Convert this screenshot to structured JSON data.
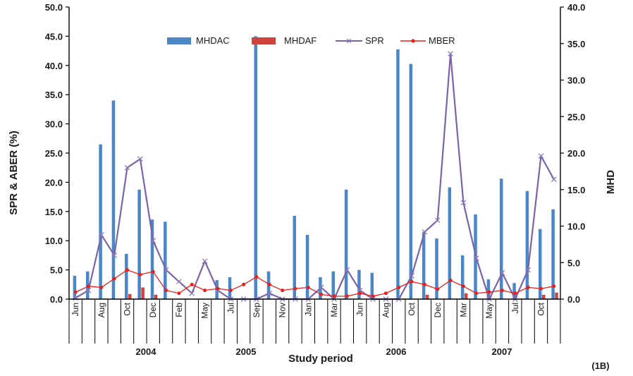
{
  "chart_data": {
    "type": "bar",
    "panel_label": "(1B)",
    "xlabel": "Study period",
    "ylabel_left": "SPR & ABER (%)",
    "ylabel_right": "MHD",
    "ylim_left": [
      0,
      50
    ],
    "ylim_right": [
      0,
      40
    ],
    "yticks_left": [
      "0.0",
      "5.0",
      "10.0",
      "15.0",
      "20.0",
      "25.0",
      "30.0",
      "35.0",
      "40.0",
      "45.0",
      "50.0"
    ],
    "yticks_right": [
      "0.0",
      "5.0",
      "10.0",
      "15.0",
      "20.0",
      "25.0",
      "30.0",
      "35.0",
      "40.0"
    ],
    "month_labels": [
      "Jun",
      "Aug",
      "Oct",
      "Dec",
      "Feb",
      "May",
      "Jul",
      "Sep",
      "Nov",
      "Jan",
      "Mar",
      "Jun",
      "Aug",
      "Oct",
      "Dec",
      "Mar",
      "May",
      "Jul",
      "Oct"
    ],
    "years": [
      "2004",
      "2005",
      "2006",
      "2007"
    ],
    "legend": [
      "MHDAC",
      "MHDAF",
      "SPR",
      "MBER"
    ],
    "colors": {
      "MHDAC": "#4a86c8",
      "MHDAF": "#d0433a",
      "SPR": "#7a64a8",
      "MBER": "#e8211c"
    },
    "grid": false,
    "series": [
      {
        "name": "MHDAC",
        "axis": "right",
        "kind": "bar",
        "values": [
          3.2,
          3.8,
          21.2,
          27.2,
          6.2,
          15.0,
          10.9,
          10.6,
          0,
          0,
          0,
          2.6,
          3.0,
          0,
          36.0,
          3.8,
          0,
          11.4,
          8.8,
          3.0,
          3.8,
          15.0,
          4.0,
          3.6,
          0,
          34.2,
          32.2,
          9.2,
          8.3,
          15.3,
          6.0,
          11.6,
          2.7,
          16.5,
          2.2,
          14.8,
          9.6,
          12.3
        ]
      },
      {
        "name": "MHDAF",
        "axis": "right",
        "kind": "bar",
        "values": [
          0,
          0,
          0,
          0,
          0.7,
          1.6,
          0.6,
          0,
          0,
          0,
          0,
          0,
          0,
          0,
          0,
          0,
          0,
          0,
          0,
          0,
          0,
          0,
          0,
          0,
          0,
          0,
          0,
          0.6,
          0,
          0,
          0.8,
          0,
          0,
          0,
          0,
          0,
          0.6,
          0.9
        ]
      },
      {
        "name": "SPR",
        "axis": "left",
        "kind": "line",
        "values": [
          0.2,
          1.5,
          11.0,
          7.5,
          22.5,
          24.0,
          10.0,
          5.0,
          3.0,
          1.0,
          6.5,
          1.5,
          0,
          0,
          0,
          1.0,
          0,
          0,
          0,
          2.0,
          0,
          5.0,
          1.5,
          0,
          0,
          0,
          4.0,
          11.5,
          13.5,
          42.0,
          16.5,
          7.0,
          0,
          4.5,
          0,
          5.0,
          24.5,
          20.5
        ]
      },
      {
        "name": "MBER",
        "axis": "left",
        "kind": "line",
        "values": [
          1.2,
          2.2,
          2.0,
          3.5,
          5.0,
          4.2,
          4.7,
          1.5,
          1.0,
          2.5,
          1.5,
          1.8,
          1.5,
          2.5,
          3.8,
          2.5,
          1.5,
          1.8,
          2.0,
          0.8,
          0.5,
          0.5,
          1.0,
          0.5,
          1.0,
          2.0,
          3.0,
          2.5,
          1.7,
          3.2,
          2.2,
          1.0,
          1.2,
          1.5,
          1.0,
          2.0,
          1.8,
          2.2
        ]
      }
    ]
  }
}
